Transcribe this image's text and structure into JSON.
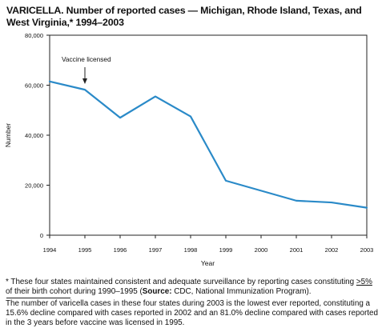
{
  "title": "VARICELLA. Number of reported cases — Michigan, Rhode Island, Texas, and West Virginia,* 1994–2003",
  "chart_data": {
    "type": "line",
    "title": "VARICELLA. Number of reported cases — Michigan, Rhode Island, Texas, and West Virginia,* 1994–2003",
    "xlabel": "Year",
    "ylabel": "Number",
    "x": [
      1994,
      1995,
      1996,
      1997,
      1998,
      1999,
      2000,
      2001,
      2002,
      2003
    ],
    "y_ticks": [
      0,
      20000,
      40000,
      60000,
      80000
    ],
    "y_tick_labels": [
      "0",
      "20,000",
      "40,000",
      "60,000",
      "80,000"
    ],
    "ylim": [
      0,
      80000
    ],
    "grid": false,
    "series": [
      {
        "values": [
          61500,
          58200,
          47000,
          55500,
          47500,
          21800,
          17800,
          13800,
          13100,
          11000
        ]
      }
    ],
    "annotations": [
      {
        "text": "Vaccine licensed",
        "x": 1995
      }
    ],
    "line_color": "#2a8ac8"
  },
  "footnote": {
    "star": "*",
    "lead": " These four states maintained consistent and adequate surveillance by reporting cases constituting ",
    "threshold": ">5%",
    "rest": " of their birth cohort during 1990–1995 (",
    "source_label": "Source:",
    "source_text": " CDC, National Immunization Program)."
  },
  "summary": "The number of varicella cases in these four states during 2003 is the lowest ever reported, constituting a 15.6% decline compared with cases reported in 2002 and an 81.0% decline compared with cases reported in the 3 years before vaccine was licensed in 1995."
}
